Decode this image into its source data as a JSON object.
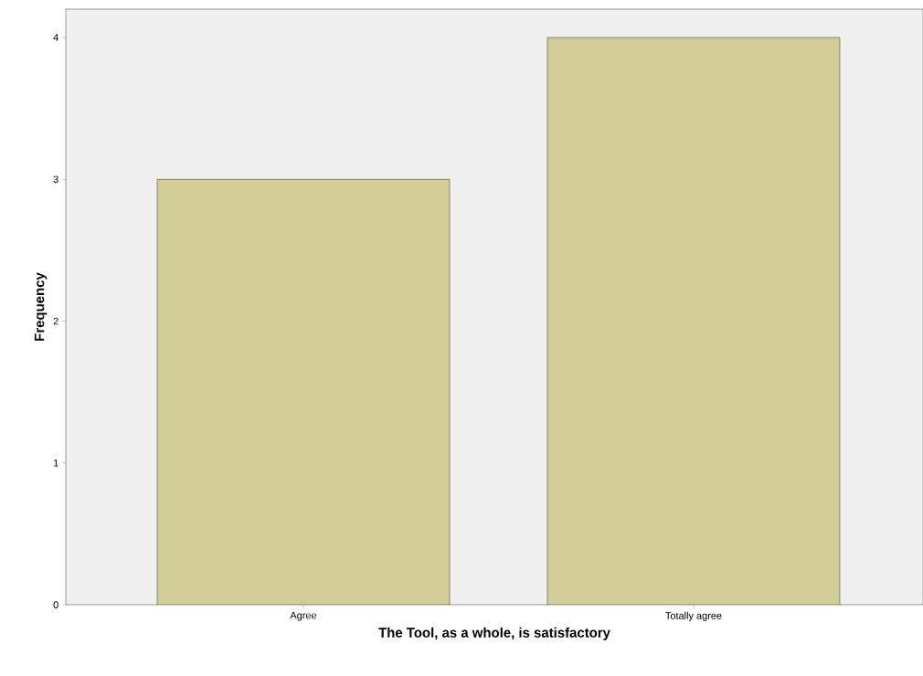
{
  "chart_data": {
    "type": "bar",
    "xlabel": "The Tool, as a whole, is satisfactory",
    "ylabel": "Frequency",
    "categories": [
      "Agree",
      "Totally agree"
    ],
    "values": [
      3,
      4
    ],
    "color": "#d3ce97",
    "ylim": [
      0,
      4.2
    ],
    "yticks": [
      0,
      1,
      2,
      3,
      4
    ],
    "grid": false
  }
}
